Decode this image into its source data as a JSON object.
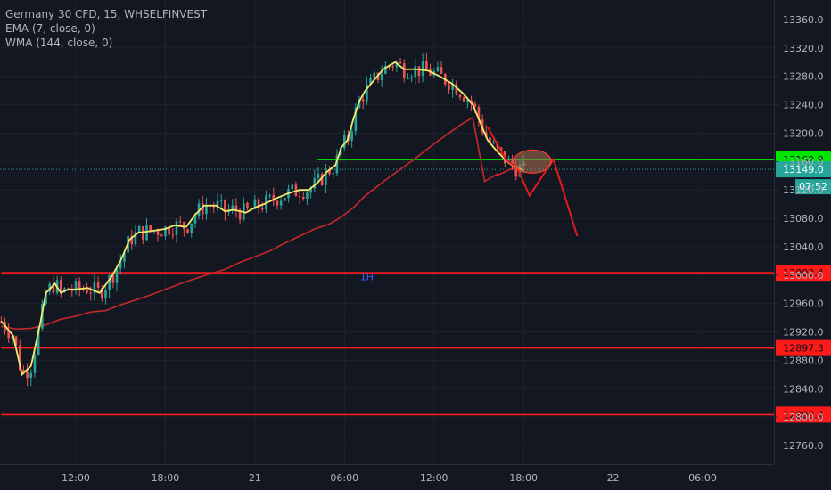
{
  "chart_data": {
    "type": "candlestick",
    "legend": {
      "symbol": "Germany 30 CFD, 15, WHSELFINVEST",
      "ema": "EMA (7, close, 0)",
      "wma": "WMA (144, close, 0)"
    },
    "y_axis": {
      "ylim": [
        12750,
        13370
      ],
      "ticks": [
        "13360.0",
        "13320.0",
        "13280.0",
        "13240.0",
        "13200.0",
        "13160.0",
        "13120.0",
        "13080.0",
        "13040.0",
        "13000.0",
        "12960.0",
        "12920.0",
        "12880.0",
        "12840.0",
        "12800.0",
        "12760.0"
      ]
    },
    "x_axis": {
      "ticks": [
        {
          "label": "12:00",
          "t": 12
        },
        {
          "label": "18:00",
          "t": 18
        },
        {
          "label": "21",
          "t": 24
        },
        {
          "label": "06:00",
          "t": 30
        },
        {
          "label": "12:00",
          "t": 36
        },
        {
          "label": "18:00",
          "t": 42
        },
        {
          "label": "22",
          "t": 48
        },
        {
          "label": "06:00",
          "t": 54
        }
      ]
    },
    "horizontal_levels": [
      {
        "price": 13162.9,
        "label": "13162.9",
        "color": "#00e600",
        "t_start": 28.2
      },
      {
        "price": 13003.4,
        "label": "13003.4",
        "color": "#ff1a1a",
        "t_start": 7
      },
      {
        "price": 12897.3,
        "label": "12897.3",
        "color": "#ff1a1a",
        "t_start": 7
      },
      {
        "price": 12803.4,
        "label": "12803.4",
        "color": "#ff1a1a",
        "t_start": 7
      }
    ],
    "last_price": {
      "price": 13149.0,
      "label": "13149.0",
      "countdown": "07:52",
      "color": "#26a69a"
    },
    "annotation": {
      "text": "1H",
      "t": 31.5,
      "price": 12993,
      "color": "#2962ff"
    },
    "ema_series": [
      [
        7,
        12935
      ],
      [
        7.8,
        12915
      ],
      [
        8.4,
        12860
      ],
      [
        9,
        12872
      ],
      [
        9.6,
        12930
      ],
      [
        10,
        12975
      ],
      [
        10.6,
        12988
      ],
      [
        11,
        12975
      ],
      [
        11.5,
        12980
      ],
      [
        12,
        12980
      ],
      [
        12.8,
        12982
      ],
      [
        13.6,
        12975
      ],
      [
        14.4,
        12998
      ],
      [
        15,
        13020
      ],
      [
        15.6,
        13050
      ],
      [
        16.2,
        13060
      ],
      [
        17,
        13062
      ],
      [
        18,
        13065
      ],
      [
        18.6,
        13070
      ],
      [
        19.4,
        13068
      ],
      [
        20,
        13085
      ],
      [
        20.6,
        13098
      ],
      [
        21.4,
        13098
      ],
      [
        22,
        13090
      ],
      [
        22.6,
        13092
      ],
      [
        23.4,
        13088
      ],
      [
        24,
        13095
      ],
      [
        24.6,
        13100
      ],
      [
        25.4,
        13108
      ],
      [
        26.2,
        13115
      ],
      [
        27,
        13120
      ],
      [
        27.6,
        13120
      ],
      [
        28.2,
        13130
      ],
      [
        28.8,
        13145
      ],
      [
        29.4,
        13155
      ],
      [
        29.8,
        13180
      ],
      [
        30.2,
        13190
      ],
      [
        30.6,
        13220
      ],
      [
        31,
        13245
      ],
      [
        31.4,
        13260
      ],
      [
        31.8,
        13270
      ],
      [
        32.2,
        13280
      ],
      [
        32.6,
        13290
      ],
      [
        33,
        13295
      ],
      [
        33.4,
        13300
      ],
      [
        34,
        13290
      ],
      [
        34.8,
        13290
      ],
      [
        35.6,
        13288
      ],
      [
        36.4,
        13280
      ],
      [
        37.2,
        13270
      ],
      [
        38,
        13255
      ],
      [
        38.6,
        13240
      ],
      [
        39.2,
        13210
      ],
      [
        39.6,
        13190
      ],
      [
        40.2,
        13175
      ],
      [
        40.8,
        13162
      ],
      [
        41.4,
        13152
      ],
      [
        42,
        13148
      ]
    ],
    "wma_series": [
      [
        7,
        12928
      ],
      [
        8,
        12924
      ],
      [
        9,
        12925
      ],
      [
        10,
        12930
      ],
      [
        11,
        12938
      ],
      [
        12,
        12942
      ],
      [
        13,
        12948
      ],
      [
        14,
        12950
      ],
      [
        15,
        12958
      ],
      [
        16,
        12965
      ],
      [
        17,
        12972
      ],
      [
        18,
        12980
      ],
      [
        19,
        12988
      ],
      [
        20,
        12995
      ],
      [
        21,
        13002
      ],
      [
        22,
        13008
      ],
      [
        23,
        13018
      ],
      [
        24,
        13026
      ],
      [
        25,
        13034
      ],
      [
        26,
        13045
      ],
      [
        27,
        13055
      ],
      [
        28,
        13065
      ],
      [
        29,
        13072
      ],
      [
        29.8,
        13082
      ],
      [
        30.6,
        13095
      ],
      [
        31.4,
        13112
      ],
      [
        32.2,
        13125
      ],
      [
        33,
        13138
      ],
      [
        33.8,
        13150
      ],
      [
        34.6,
        13162
      ],
      [
        35.4,
        13175
      ],
      [
        36.2,
        13188
      ],
      [
        37,
        13200
      ],
      [
        37.8,
        13212
      ],
      [
        38.6,
        13222
      ],
      [
        39.4,
        13132
      ],
      [
        39.4,
        13232
      ],
      [
        40.2,
        13142
      ],
      [
        40.2,
        13140
      ],
      [
        41,
        13148
      ],
      [
        41.8,
        13154
      ],
      [
        42.2,
        13156
      ]
    ],
    "projection_path": [
      [
        39.6,
        13209
      ],
      [
        40.8,
        13163
      ],
      [
        41.6,
        13150
      ],
      [
        42.4,
        13112
      ],
      [
        44,
        13163
      ],
      [
        45.6,
        13055
      ]
    ],
    "highlight_ellipse": {
      "t": 42,
      "price": 13160,
      "label": ""
    }
  }
}
